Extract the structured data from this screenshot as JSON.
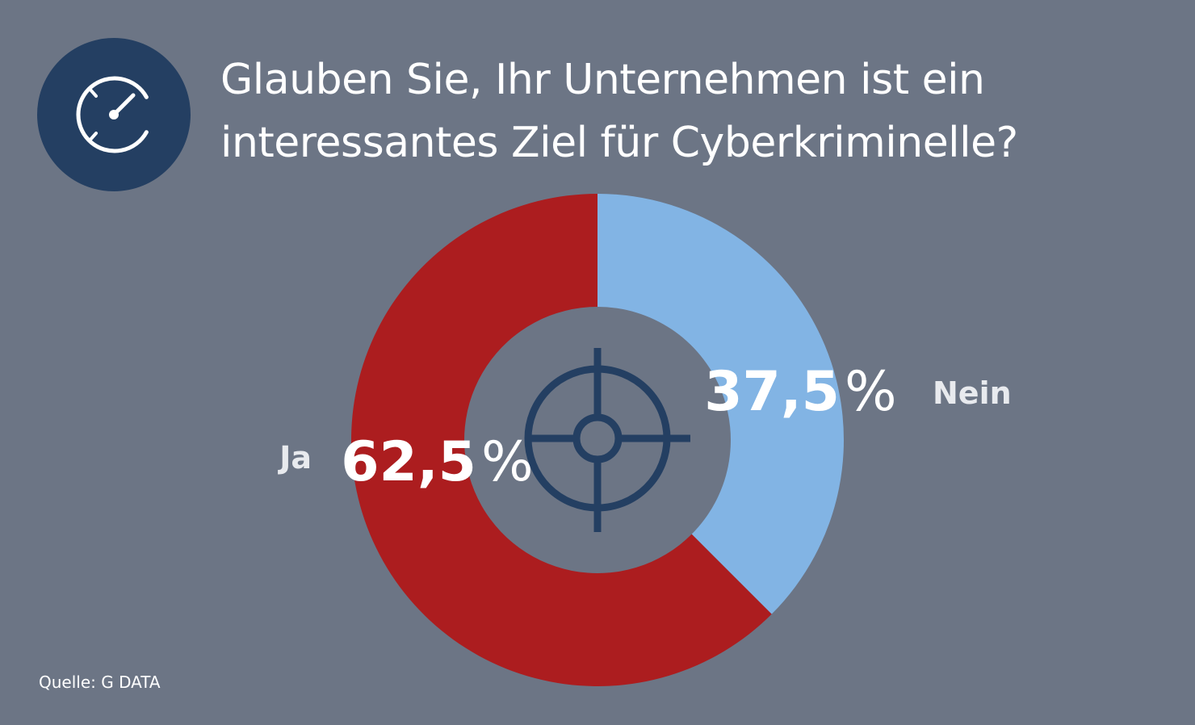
{
  "header": {
    "icon": "gauge-icon",
    "title_line1": "Glauben Sie, Ihr Unternehmen ist ein",
    "title_line2": "interessantes Ziel für Cyberkriminelle?"
  },
  "chart_data": {
    "type": "pie",
    "title": "Glauben Sie, Ihr Unternehmen ist ein interessantes Ziel für Cyberkriminelle?",
    "donut": true,
    "slices": [
      {
        "label": "Nein",
        "value": 37.5,
        "value_text": "37,5",
        "unit": "%",
        "color": "#82b4e4"
      },
      {
        "label": "Ja",
        "value": 62.5,
        "value_text": "62,5",
        "unit": "%",
        "color": "#ac1d1f"
      }
    ],
    "center_icon": "crosshair-target-icon"
  },
  "colors": {
    "background": "#6c7585",
    "icon_circle": "#243f62",
    "crosshair": "#243f62"
  },
  "footer": {
    "source": "Quelle: G DATA"
  }
}
